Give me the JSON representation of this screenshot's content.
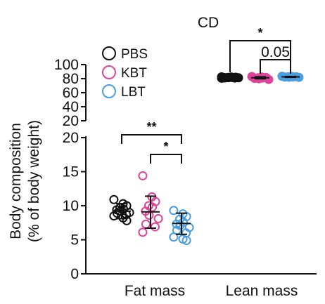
{
  "chart_data": {
    "type": "scatter",
    "title": "CD",
    "ylabel_line1": "Body composition",
    "ylabel_line2": "(% of body weight)",
    "categories": [
      "Fat mass",
      "Lean mass"
    ],
    "y_axis_break": true,
    "y_ticks_lower": [
      "0",
      "5",
      "10",
      "15",
      "20"
    ],
    "y_ticks_upper": [
      "20",
      "40",
      "60",
      "80",
      "100"
    ],
    "legend": [
      {
        "name": "PBS",
        "color": "#111111"
      },
      {
        "name": "KBT",
        "color": "#e0439a"
      },
      {
        "name": "LBT",
        "color": "#4a9ee0"
      }
    ],
    "series": [
      {
        "name": "PBS",
        "color": "#111111",
        "fat_mass": {
          "mean": 9.2,
          "sd_low": 8.1,
          "sd_high": 10.3,
          "points": [
            10.9,
            10.3,
            10.0,
            9.7,
            9.5,
            9.4,
            9.2,
            9.0,
            8.9,
            8.7,
            8.5,
            8.2,
            7.8
          ]
        },
        "lean_mass": {
          "mean": 81.5,
          "sd_low": 80.8,
          "sd_high": 82.2,
          "points": [
            82.5,
            82.2,
            82.0,
            81.8,
            81.6,
            81.5,
            81.4,
            81.2,
            81.0,
            80.8,
            80.6
          ]
        }
      },
      {
        "name": "KBT",
        "color": "#e0439a",
        "fat_mass": {
          "mean": 9.1,
          "sd_low": 6.7,
          "sd_high": 11.4,
          "points": [
            14.4,
            11.3,
            10.6,
            10.0,
            9.8,
            9.2,
            8.6,
            8.1,
            7.3,
            6.9,
            6.1
          ]
        },
        "lean_mass": {
          "mean": 81.2,
          "sd_low": 79.8,
          "sd_high": 82.6,
          "points": [
            83.0,
            82.3,
            81.8,
            81.3,
            80.9,
            80.3,
            79.8,
            78.8
          ]
        }
      },
      {
        "name": "LBT",
        "color": "#4a9ee0",
        "fat_mass": {
          "mean": 7.4,
          "sd_low": 5.8,
          "sd_high": 8.9,
          "points": [
            9.3,
            8.8,
            8.4,
            8.0,
            7.6,
            7.3,
            7.1,
            6.8,
            6.4,
            6.0,
            5.4,
            5.1,
            4.9
          ]
        },
        "lean_mass": {
          "mean": 82.5,
          "sd_low": 81.9,
          "sd_high": 83.1,
          "points": [
            83.4,
            83.0,
            82.8,
            82.6,
            82.4,
            82.2,
            82.0,
            81.8
          ]
        }
      }
    ],
    "significance": [
      {
        "category": "Fat mass",
        "from": "PBS",
        "to": "LBT",
        "label": "**"
      },
      {
        "category": "Fat mass",
        "from": "KBT",
        "to": "LBT",
        "label": "*"
      },
      {
        "category": "Lean mass",
        "from": "PBS",
        "to": "LBT",
        "label": "*"
      },
      {
        "category": "Lean mass",
        "from": "KBT",
        "to": "LBT",
        "label": "0.05"
      }
    ]
  }
}
